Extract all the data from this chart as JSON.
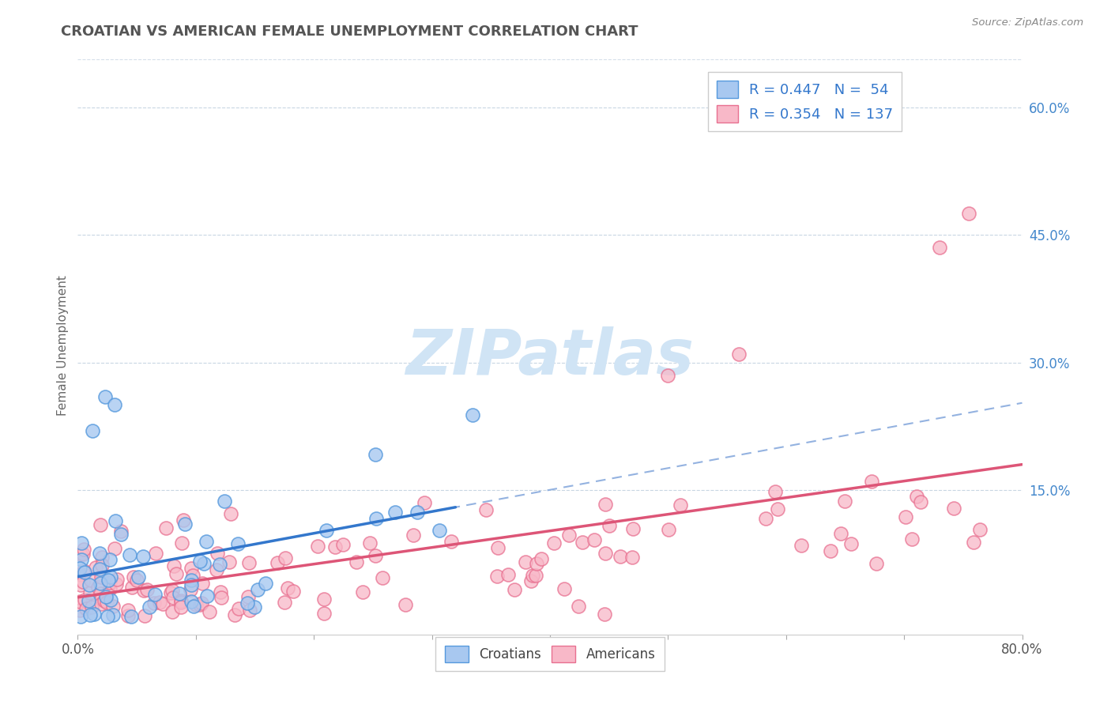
{
  "title": "CROATIAN VS AMERICAN FEMALE UNEMPLOYMENT CORRELATION CHART",
  "source_text": "Source: ZipAtlas.com",
  "ylabel": "Female Unemployment",
  "right_yticks": [
    0.0,
    0.15,
    0.3,
    0.45,
    0.6
  ],
  "right_yticklabels": [
    "",
    "15.0%",
    "30.0%",
    "45.0%",
    "60.0%"
  ],
  "xmin": 0.0,
  "xmax": 0.8,
  "ymin": -0.02,
  "ymax": 0.66,
  "croatian_R": 0.447,
  "croatian_N": 54,
  "american_R": 0.354,
  "american_N": 137,
  "croatian_scatter_color": "#A8C8F0",
  "croatian_edge_color": "#5599DD",
  "croatian_line_color": "#3377CC",
  "american_scatter_color": "#F8B8C8",
  "american_edge_color": "#E87090",
  "american_line_color": "#DD5577",
  "dashed_line_color": "#88AADD",
  "watermark_text_color": "#D0E4F5",
  "background_color": "#FFFFFF",
  "title_color": "#555555",
  "title_fontsize": 13,
  "legend_text_color": "#3377CC",
  "grid_color": "#DDDDDD",
  "grid_style": "--"
}
